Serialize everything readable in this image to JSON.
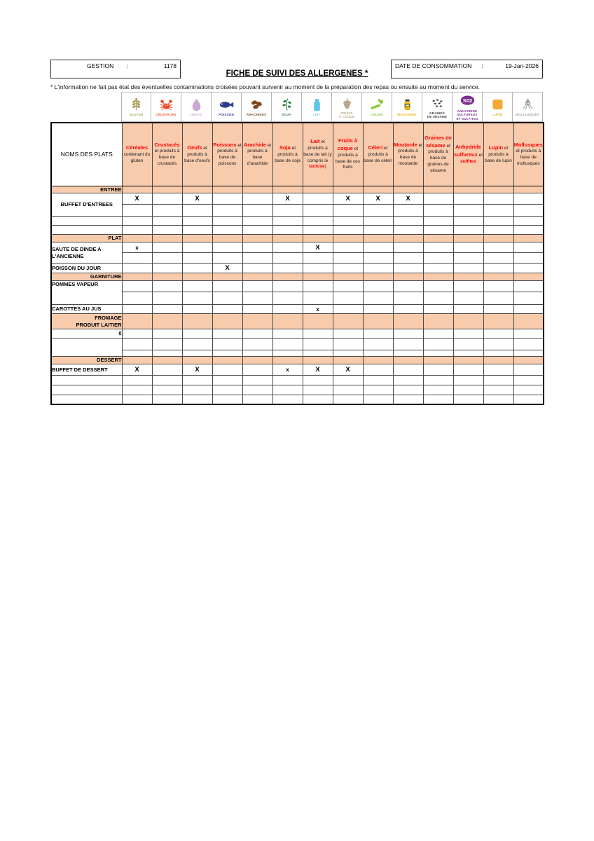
{
  "header": {
    "gestion_label": "GESTION",
    "gestion_colon": ":",
    "gestion_value": "1178",
    "title": "FICHE DE SUIVI DES ALLERGENES *",
    "date_label": "DATE DE CONSOMMATION",
    "date_colon": ":",
    "date_value": "19-Jan-2026",
    "note": "* L'information ne fait pas état des éventuelles contaminations croisées pouvant survenir au moment de la préparation des repas ou ensuite au moment du service."
  },
  "colors": {
    "section_fill": "#F8CBAD",
    "allergen_name_red": "#FF0000",
    "desc_text": "#1a1a1a"
  },
  "table": {
    "first_col_header": "NOMS DES PLATS",
    "allergens": [
      {
        "id": "cereales",
        "icon_label": "GLUTEN",
        "name": "Céréales",
        "color": "#A6A25F",
        "desc_parts": [
          {
            "t": "contenant du gluten"
          }
        ]
      },
      {
        "id": "crustaces",
        "icon_label": "CRUSTACÉS",
        "name": "Crustacés",
        "color": "#E8502D",
        "desc_parts": [
          {
            "t": "et produits à base de crustacés"
          }
        ]
      },
      {
        "id": "oeufs",
        "icon_label": "OEUFS",
        "name": "Oeufs",
        "color": "#C9A7CF",
        "desc_parts": [
          {
            "t": "et produits à base d'oeufs"
          }
        ]
      },
      {
        "id": "poissons",
        "icon_label": "POISSON",
        "name": "Poissons",
        "color": "#2B3C8F",
        "desc_parts": [
          {
            "t": "et produits à base de poissons"
          }
        ]
      },
      {
        "id": "arachide",
        "icon_label": "ARACHIDES",
        "name": "Arachide",
        "color": "#7B4A21",
        "desc_parts": [
          {
            "t": "et produits à base d'arachide"
          }
        ]
      },
      {
        "id": "soja",
        "icon_label": "SOJA",
        "name": "Soja",
        "color": "#2E7D3A",
        "desc_parts": [
          {
            "t": "et produits à base de soja"
          }
        ]
      },
      {
        "id": "lait",
        "icon_label": "LAIT",
        "name": "Lait",
        "color": "#62C2E8",
        "desc_parts": [
          {
            "t": "et produits à base de lait (y compris le "
          },
          {
            "t": "lactose",
            "red": true
          },
          {
            "t": ")"
          }
        ]
      },
      {
        "id": "fruits_a_coque",
        "icon_label": "FRUITS\nÀ COQUE",
        "name": "Fruits à coque",
        "color": "#B9A68B",
        "desc_parts": [
          {
            "t": "et produits à base de ces fruits"
          }
        ]
      },
      {
        "id": "celeri",
        "icon_label": "CÉLERI",
        "name": "Céleri",
        "color": "#8DC63F",
        "desc_parts": [
          {
            "t": "et produits à base de céleri"
          }
        ]
      },
      {
        "id": "moutarde",
        "icon_label": "MOUTARDE",
        "name": "Moutarde",
        "color": "#E8B500",
        "desc_parts": [
          {
            "t": "et produits à base de moutarde"
          }
        ]
      },
      {
        "id": "sesame",
        "icon_label": "GRAINES\nDE SÉSAME",
        "name": "Graines de sésame",
        "color": "#3A3A3A",
        "desc_parts": [
          {
            "t": "et produits à base de graines de sésame"
          }
        ]
      },
      {
        "id": "sulfites",
        "icon_label": "ANHYDRIDE\nSULFUREUX\nET SULFITES",
        "icon_text": "S02",
        "name": "Anhydride sulfureux",
        "color": "#7B2E8E",
        "desc_parts": [
          {
            "t": "et "
          },
          {
            "t": "sulfites",
            "red": true
          }
        ]
      },
      {
        "id": "lupin",
        "icon_label": "LUPIN",
        "name": "Lupin",
        "color": "#F5A833",
        "desc_parts": [
          {
            "t": "et produits à base de lupin"
          }
        ]
      },
      {
        "id": "mollusques",
        "icon_label": "MOLLUSQUES",
        "name": "Mollusques",
        "color": "#A0A0A0",
        "desc_parts": [
          {
            "t": "et produits à base de mollusques"
          }
        ]
      }
    ],
    "rows": [
      {
        "kind": "section",
        "id": "entree",
        "label": "ENTREE",
        "h": 10
      },
      {
        "kind": "dish",
        "id": "buffet-entrees",
        "label": "BUFFET D'ENTREES",
        "rowspan": 2,
        "align": "center",
        "h": 16,
        "marks": {
          "0": "X",
          "2": "X",
          "5": "X",
          "7": "X",
          "8": "X",
          "9": "X"
        }
      },
      {
        "kind": "cont",
        "h": 17
      },
      {
        "kind": "dish",
        "id": "empty",
        "label": "",
        "h": 13
      },
      {
        "kind": "dish",
        "id": "empty",
        "label": "",
        "h": 13
      },
      {
        "kind": "section",
        "id": "plat",
        "label": "PLAT",
        "h": 11
      },
      {
        "kind": "dish",
        "id": "saute-dinde",
        "label": "SAUTE DE DINDE A\nL'ANCIENNE",
        "rowspan": 2,
        "align": "left",
        "h": 15,
        "marks": {
          "0": "x",
          "6": "X"
        }
      },
      {
        "kind": "cont",
        "h": 15
      },
      {
        "kind": "dish",
        "id": "poisson-jour",
        "label": "POISSON DU JOUR",
        "h": 14,
        "marks": {
          "3": "X"
        }
      },
      {
        "kind": "section",
        "id": "garniture",
        "label": "GARNITURE",
        "h": 11
      },
      {
        "kind": "dish",
        "id": "pommes-vapeur",
        "label": "POMMES VAPEUR",
        "rowspan": 2,
        "align": "left",
        "valign": "top",
        "h": 16,
        "marks": {}
      },
      {
        "kind": "cont",
        "h": 18
      },
      {
        "kind": "dish",
        "id": "carottes-jus",
        "label": "CAROTTES AU JUS",
        "h": 13,
        "marks": {
          "6": "x"
        }
      },
      {
        "kind": "section",
        "id": "fromage",
        "label": "FROMAGE\nPRODUIT LAITIER",
        "h": 22
      },
      {
        "kind": "dish",
        "id": "zero",
        "label": "0",
        "align": "right",
        "h": 13,
        "marks": {}
      },
      {
        "kind": "dish",
        "id": "empty",
        "label": "",
        "rowspan": 2,
        "h": 17,
        "marks": {}
      },
      {
        "kind": "cont",
        "h": 9
      },
      {
        "kind": "section",
        "id": "dessert",
        "label": "DESSERT",
        "h": 11
      },
      {
        "kind": "dish",
        "id": "buffet-dessert",
        "label": "BUFFET DE DESSERT",
        "h": 16,
        "marks": {
          "0": "X",
          "2": "X",
          "5": "x",
          "6": "X",
          "7": "X"
        }
      },
      {
        "kind": "dish",
        "id": "empty",
        "label": "",
        "h": 14
      },
      {
        "kind": "dish",
        "id": "empty",
        "label": "",
        "h": 14
      },
      {
        "kind": "dish",
        "id": "empty",
        "label": "",
        "h": 13
      }
    ]
  }
}
